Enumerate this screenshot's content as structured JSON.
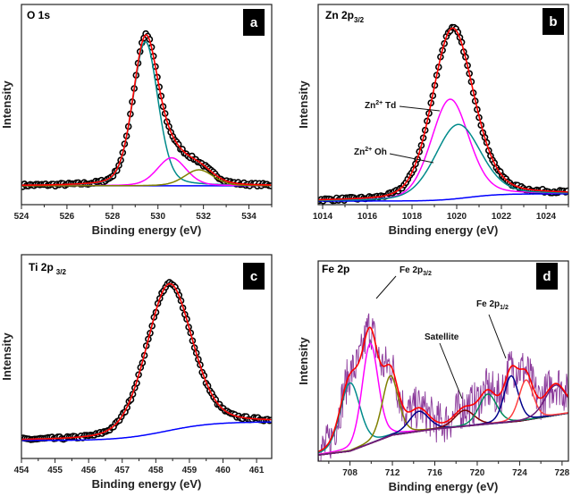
{
  "chart_data": [
    {
      "panel_label": "a",
      "type": "line",
      "title": {
        "main": "O 1s",
        "sub": ""
      },
      "xlabel": "Binding energy (eV)",
      "ylabel": "Intensity",
      "xlim": [
        524,
        535
      ],
      "ylim": [
        0,
        1
      ],
      "xticks": [
        524,
        526,
        528,
        530,
        532,
        534
      ],
      "y_ticks_shown": false,
      "data_style": "open-circles",
      "background": {
        "left": 0.094,
        "right": 0.094,
        "center": 530,
        "color": "#0000ff"
      },
      "components": [
        {
          "center": 529.45,
          "height": 0.72,
          "fwhm": 1.3,
          "color": "#008b8b"
        },
        {
          "center": 530.6,
          "height": 0.14,
          "fwhm": 1.5,
          "color": "#ff00ff"
        },
        {
          "center": 531.8,
          "height": 0.08,
          "fwhm": 1.5,
          "color": "#808000"
        }
      ],
      "envelope_color": "#ff0000",
      "annotations": []
    },
    {
      "panel_label": "b",
      "type": "line",
      "title": {
        "main": "Zn 2p",
        "sub": "3/2"
      },
      "xlabel": "Binding energy (eV)",
      "ylabel": "Intensity",
      "xlim": [
        1013.8,
        1025
      ],
      "ylim": [
        0,
        1
      ],
      "xticks": [
        1014,
        1016,
        1018,
        1020,
        1022,
        1024
      ],
      "y_ticks_shown": false,
      "data_style": "open-circles",
      "background": {
        "left": 0.018,
        "right": 0.054,
        "center": 1020.5,
        "color": "#0000ff"
      },
      "components": [
        {
          "name": "Zn2+ Td",
          "center": 1019.7,
          "height": 0.5,
          "fwhm": 2.0,
          "color": "#ff00ff"
        },
        {
          "name": "Zn2+ Oh",
          "center": 1020.05,
          "height": 0.37,
          "fwhm": 2.4,
          "color": "#008b8b"
        }
      ],
      "envelope_color": "#ff0000",
      "annotations": [
        {
          "pre": "Zn",
          "sup": "2+",
          "post": " Td"
        },
        {
          "pre": "Zn",
          "sup": "2+",
          "post": " Oh"
        }
      ]
    },
    {
      "panel_label": "c",
      "type": "line",
      "title": {
        "main": "Ti 2p",
        "sub": "3/2"
      },
      "xlabel": "Binding energy (eV)",
      "ylabel": "Intensity",
      "xlim": [
        454,
        461.45
      ],
      "ylim": [
        0,
        1
      ],
      "xticks": [
        454,
        455,
        456,
        457,
        458,
        459,
        460,
        461
      ],
      "y_ticks_shown": false,
      "data_style": "open-circles",
      "background": {
        "left": 0.088,
        "right": 0.18,
        "center": 458.3,
        "color": "#0000ff"
      },
      "components": [
        {
          "center": 458.4,
          "height": 0.72,
          "fwhm": 1.6,
          "color": "#008b8b"
        }
      ],
      "envelope_color": "#ff0000",
      "annotations": []
    },
    {
      "panel_label": "d",
      "type": "line",
      "title": {
        "main": "Fe 2p",
        "sub": ""
      },
      "xlabel": "Binding energy (eV)",
      "ylabel": "Intensity",
      "xlim": [
        705,
        728.6
      ],
      "ylim": [
        0,
        1
      ],
      "xticks": [
        708,
        712,
        716,
        720,
        724,
        728
      ],
      "y_ticks_shown": false,
      "data_style": "noisy-line",
      "data_color": "#8b3a9b",
      "background_points": [
        [
          705,
          0.03
        ],
        [
          708,
          0.05
        ],
        [
          710,
          0.09
        ],
        [
          712,
          0.13
        ],
        [
          716,
          0.16
        ],
        [
          720,
          0.18
        ],
        [
          724,
          0.2
        ],
        [
          728.6,
          0.24
        ]
      ],
      "background": {
        "color": "#7b2d6b"
      },
      "components": [
        {
          "center": 708.0,
          "height": 0.34,
          "fwhm": 2.2,
          "color": "#008b8b"
        },
        {
          "center": 709.9,
          "height": 0.5,
          "fwhm": 1.8,
          "color": "#ff00ff"
        },
        {
          "center": 711.8,
          "height": 0.3,
          "fwhm": 1.8,
          "color": "#808000"
        },
        {
          "center": 714.5,
          "height": 0.1,
          "fwhm": 2.2,
          "color": "#00008b"
        },
        {
          "center": 718.8,
          "height": 0.08,
          "fwhm": 2.2,
          "color": "#800000"
        },
        {
          "center": 721.0,
          "height": 0.15,
          "fwhm": 2.0,
          "color": "#008b5a"
        },
        {
          "center": 723.2,
          "height": 0.23,
          "fwhm": 1.6,
          "color": "#00008b"
        },
        {
          "center": 724.6,
          "height": 0.2,
          "fwhm": 1.6,
          "color": "#ff4040"
        },
        {
          "center": 727.4,
          "height": 0.15,
          "fwhm": 2.4,
          "color": "#6a1b7a"
        }
      ],
      "envelope_color": "#ff0000",
      "annotations": [
        {
          "pre": "Fe 2p",
          "sub": "3/2"
        },
        {
          "pre": "Satellite"
        },
        {
          "pre": "Fe 2p",
          "sub": "1/2"
        }
      ]
    }
  ]
}
